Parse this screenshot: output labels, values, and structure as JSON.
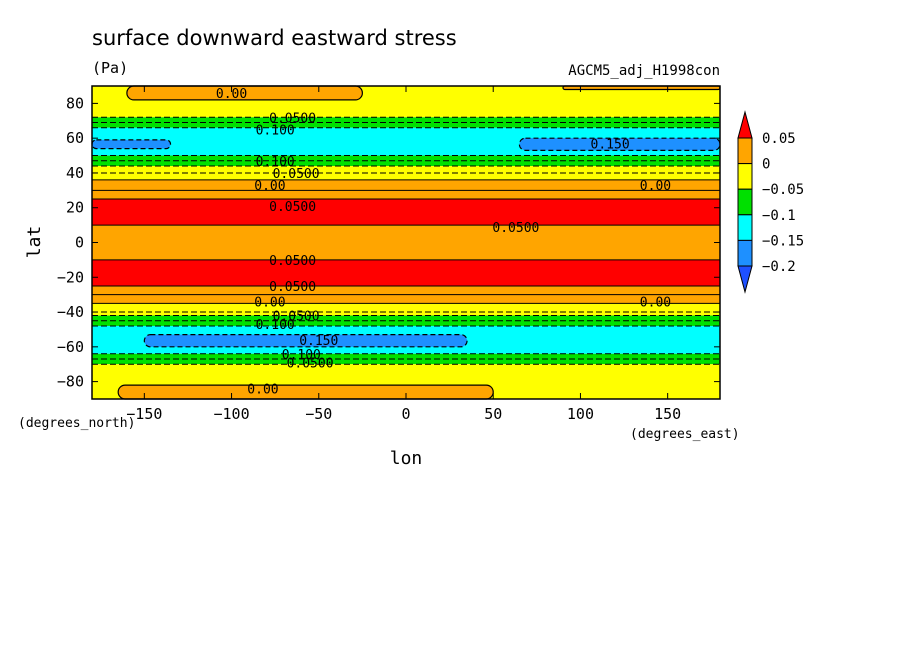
{
  "chart_data": {
    "type": "heatmap",
    "title": "surface downward eastward stress",
    "units": "(Pa)",
    "dataset": "AGCM5_adj_H1998con",
    "xlabel": "lon",
    "ylabel": "lat",
    "x_unit_label": "(degrees_east)",
    "y_unit_label": "(degrees_north)",
    "xlim": [
      -180,
      180
    ],
    "ylim": [
      -90,
      90
    ],
    "x_ticks": [
      -150,
      -100,
      -50,
      0,
      50,
      100,
      150
    ],
    "x_tick_labels": [
      "−150",
      "−100",
      "−50",
      "0",
      "50",
      "100",
      "150"
    ],
    "y_ticks": [
      80,
      60,
      40,
      20,
      0,
      -20,
      -40,
      -60,
      -80
    ],
    "y_tick_labels": [
      "80",
      "60",
      "40",
      "20",
      "0",
      "−20",
      "−40",
      "−60",
      "−80"
    ],
    "colorbar": {
      "levels": [
        0.05,
        0,
        -0.05,
        -0.1,
        -0.15,
        -0.2
      ],
      "labels": [
        "0.05",
        "0",
        "−0.05",
        "−0.1",
        "−0.15",
        "−0.2"
      ],
      "colors": [
        "#ff0000",
        "#ffa500",
        "#ffff00",
        "#00e000",
        "#00ffff",
        "#1e90ff",
        "#1e50ff"
      ]
    },
    "zonal_bands": [
      {
        "lat_from": 90,
        "lat_to": 72,
        "class": "yellow"
      },
      {
        "lat_from": 72,
        "lat_to": 66,
        "class": "green"
      },
      {
        "lat_from": 66,
        "lat_to": 50,
        "class": "cyan"
      },
      {
        "lat_from": 50,
        "lat_to": 44,
        "class": "green"
      },
      {
        "lat_from": 44,
        "lat_to": 36,
        "class": "yellow"
      },
      {
        "lat_from": 36,
        "lat_to": 25,
        "class": "orange"
      },
      {
        "lat_from": 25,
        "lat_to": 10,
        "class": "red"
      },
      {
        "lat_from": 10,
        "lat_to": -10,
        "class": "orange"
      },
      {
        "lat_from": -10,
        "lat_to": -25,
        "class": "red"
      },
      {
        "lat_from": -25,
        "lat_to": -35,
        "class": "orange"
      },
      {
        "lat_from": -35,
        "lat_to": -42,
        "class": "yellow"
      },
      {
        "lat_from": -42,
        "lat_to": -48,
        "class": "green"
      },
      {
        "lat_from": -48,
        "lat_to": -64,
        "class": "cyan"
      },
      {
        "lat_from": -64,
        "lat_to": -70,
        "class": "green"
      },
      {
        "lat_from": -70,
        "lat_to": -90,
        "class": "yellow"
      }
    ],
    "patches": [
      {
        "class": "orange",
        "lon": [
          -160,
          -25
        ],
        "lat": [
          82,
          90
        ]
      },
      {
        "class": "orange",
        "lon": [
          90,
          180
        ],
        "lat": [
          88,
          90
        ]
      },
      {
        "class": "blue",
        "lon": [
          -180,
          -135
        ],
        "lat": [
          54,
          59
        ]
      },
      {
        "class": "blue",
        "lon": [
          65,
          180
        ],
        "lat": [
          53,
          60
        ]
      },
      {
        "class": "blue",
        "lon": [
          -150,
          35
        ],
        "lat": [
          -60,
          -53
        ]
      },
      {
        "class": "orange",
        "lon": [
          -165,
          50
        ],
        "lat": [
          -90,
          -82
        ]
      }
    ],
    "contour_labels": [
      {
        "text": "0.00",
        "lon": -100,
        "lat": 86
      },
      {
        "text": "0.0500",
        "lon": -65,
        "lat": 72
      },
      {
        "text": "0.100",
        "lon": -75,
        "lat": 65
      },
      {
        "text": "0.150",
        "lon": 117,
        "lat": 57
      },
      {
        "text": "0.100",
        "lon": -75,
        "lat": 47
      },
      {
        "text": "0.0500",
        "lon": -63,
        "lat": 40
      },
      {
        "text": "0.00",
        "lon": -78,
        "lat": 33
      },
      {
        "text": "0.00",
        "lon": 143,
        "lat": 33
      },
      {
        "text": "0.0500",
        "lon": -65,
        "lat": 21
      },
      {
        "text": "0.0500",
        "lon": 63,
        "lat": 9
      },
      {
        "text": "0.0500",
        "lon": -65,
        "lat": -10
      },
      {
        "text": "0.0500",
        "lon": -65,
        "lat": -25
      },
      {
        "text": "0.00",
        "lon": -78,
        "lat": -34
      },
      {
        "text": "0.00",
        "lon": 143,
        "lat": -34
      },
      {
        "text": "0.0500",
        "lon": -63,
        "lat": -42
      },
      {
        "text": "0.100",
        "lon": -75,
        "lat": -47
      },
      {
        "text": "0.150",
        "lon": -50,
        "lat": -56
      },
      {
        "text": "0.100",
        "lon": -60,
        "lat": -64
      },
      {
        "text": "0.0500",
        "lon": -55,
        "lat": -69
      },
      {
        "text": "0.00",
        "lon": -82,
        "lat": -84
      }
    ]
  }
}
